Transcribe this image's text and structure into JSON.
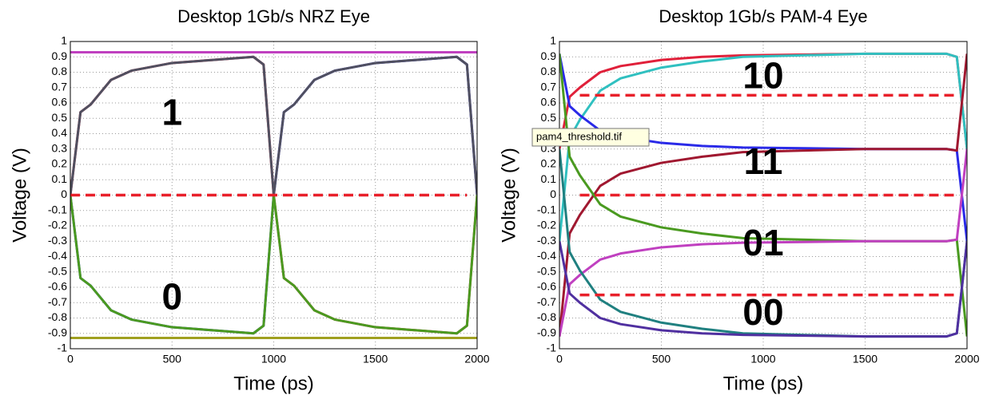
{
  "chart_data": [
    {
      "type": "line",
      "title": "Desktop 1Gb/s NRZ Eye",
      "x_label": "Time (ps)",
      "y_label": "Voltage (V)",
      "x": [
        0,
        50,
        100,
        200,
        300,
        500,
        700,
        900,
        950,
        1000,
        1050,
        1100,
        1200,
        1300,
        1500,
        1700,
        1900,
        1950,
        2000
      ],
      "series": [
        {
          "color": "#e0203a",
          "values": [
            0,
            0.54,
            0.59,
            0.75,
            0.81,
            0.86,
            0.88,
            0.9,
            0.85,
            0,
            -0.54,
            -0.59,
            -0.75,
            -0.81,
            -0.86,
            -0.88,
            -0.9,
            -0.85,
            0
          ]
        },
        {
          "color": "#2a2ae8",
          "values": [
            0,
            -0.54,
            -0.59,
            -0.75,
            -0.81,
            -0.86,
            -0.88,
            -0.9,
            -0.85,
            0,
            0.54,
            0.59,
            0.75,
            0.81,
            0.86,
            0.88,
            0.9,
            0.85,
            0
          ]
        },
        {
          "color": "#505060",
          "values": [
            0,
            0.54,
            0.59,
            0.75,
            0.81,
            0.86,
            0.88,
            0.9,
            0.85,
            0,
            0.54,
            0.59,
            0.75,
            0.81,
            0.86,
            0.88,
            0.9,
            0.85,
            0
          ]
        },
        {
          "color": "#4a9a20",
          "values": [
            0,
            -0.54,
            -0.59,
            -0.75,
            -0.81,
            -0.86,
            -0.88,
            -0.9,
            -0.85,
            0,
            -0.54,
            -0.59,
            -0.75,
            -0.81,
            -0.86,
            -0.88,
            -0.9,
            -0.85,
            0
          ]
        },
        {
          "color": "#c040c0",
          "values": [
            0.93,
            0.93,
            0.93,
            0.93,
            0.93,
            0.93,
            0.93,
            0.93,
            0.93,
            0.93,
            0.93,
            0.93,
            0.93,
            0.93,
            0.93,
            0.93,
            0.93,
            0.93,
            0.93
          ]
        },
        {
          "color": "#a0a020",
          "values": [
            -0.93,
            -0.93,
            -0.93,
            -0.93,
            -0.93,
            -0.93,
            -0.93,
            -0.93,
            -0.93,
            -0.93,
            -0.93,
            -0.93,
            -0.93,
            -0.93,
            -0.93,
            -0.93,
            -0.93,
            -0.93,
            -0.93
          ]
        }
      ],
      "thresholds": [
        0
      ],
      "threshold_color": "#e8202a",
      "annotations": [
        "1",
        "0"
      ],
      "xlim": [
        0,
        2000
      ],
      "xticks": [
        0,
        500,
        1000,
        1500,
        2000
      ],
      "ylim": [
        -1,
        1
      ],
      "yticks": [
        -1,
        -0.9,
        -0.8,
        -0.7,
        -0.6,
        -0.5,
        -0.4,
        -0.3,
        -0.2,
        -0.1,
        0,
        0.1,
        0.2,
        0.3,
        0.4,
        0.5,
        0.6,
        0.7,
        0.8,
        0.9,
        1
      ],
      "grid": true
    },
    {
      "type": "line",
      "title": "Desktop 1Gb/s PAM-4 Eye",
      "x_label": "Time (ps)",
      "y_label": "Voltage (V)",
      "x": [
        0,
        50,
        100,
        200,
        300,
        500,
        700,
        900,
        1500,
        1900,
        1950,
        2000
      ],
      "series": [
        {
          "color": "#e0203a",
          "values": [
            0.3,
            0.64,
            0.7,
            0.8,
            0.84,
            0.88,
            0.9,
            0.91,
            0.92,
            0.92,
            0.9,
            0.3
          ]
        },
        {
          "color": "#30c0c0",
          "values": [
            -0.3,
            0.37,
            0.49,
            0.68,
            0.76,
            0.83,
            0.87,
            0.9,
            0.92,
            0.92,
            0.9,
            0.3
          ]
        },
        {
          "color": "#2a2ae8",
          "values": [
            0.92,
            0.58,
            0.52,
            0.42,
            0.38,
            0.34,
            0.32,
            0.31,
            0.3,
            0.3,
            0.29,
            -0.3
          ]
        },
        {
          "color": "#a01830",
          "values": [
            -0.92,
            -0.25,
            -0.13,
            0.06,
            0.14,
            0.21,
            0.25,
            0.28,
            0.3,
            0.3,
            0.29,
            0.92
          ]
        },
        {
          "color": "#4a9a20",
          "values": [
            0.92,
            0.25,
            0.13,
            -0.06,
            -0.14,
            -0.21,
            -0.25,
            -0.28,
            -0.3,
            -0.3,
            -0.29,
            -0.92
          ]
        },
        {
          "color": "#c040c0",
          "values": [
            -0.92,
            -0.58,
            -0.52,
            -0.42,
            -0.38,
            -0.34,
            -0.32,
            -0.31,
            -0.3,
            -0.3,
            -0.29,
            0.3
          ]
        },
        {
          "color": "#208080",
          "values": [
            0.3,
            -0.37,
            -0.49,
            -0.68,
            -0.76,
            -0.83,
            -0.87,
            -0.9,
            -0.92,
            -0.92,
            -0.9,
            -0.3
          ]
        },
        {
          "color": "#5030a0",
          "values": [
            -0.3,
            -0.64,
            -0.7,
            -0.8,
            -0.84,
            -0.88,
            -0.9,
            -0.91,
            -0.92,
            -0.92,
            -0.9,
            -0.3
          ]
        }
      ],
      "thresholds": [
        0.65,
        0,
        -0.65
      ],
      "threshold_color": "#e8202a",
      "annotations": [
        "10",
        "11",
        "01",
        "00"
      ],
      "xlim": [
        0,
        2000
      ],
      "xticks": [
        0,
        500,
        1000,
        1500,
        2000
      ],
      "ylim": [
        -1,
        1
      ],
      "yticks": [
        -1,
        -0.9,
        -0.8,
        -0.7,
        -0.6,
        -0.5,
        -0.4,
        -0.3,
        -0.2,
        -0.1,
        0,
        0.1,
        0.2,
        0.3,
        0.4,
        0.5,
        0.6,
        0.7,
        0.8,
        0.9,
        1
      ],
      "grid": true
    }
  ],
  "tooltip": "pam4_threshold.tif"
}
